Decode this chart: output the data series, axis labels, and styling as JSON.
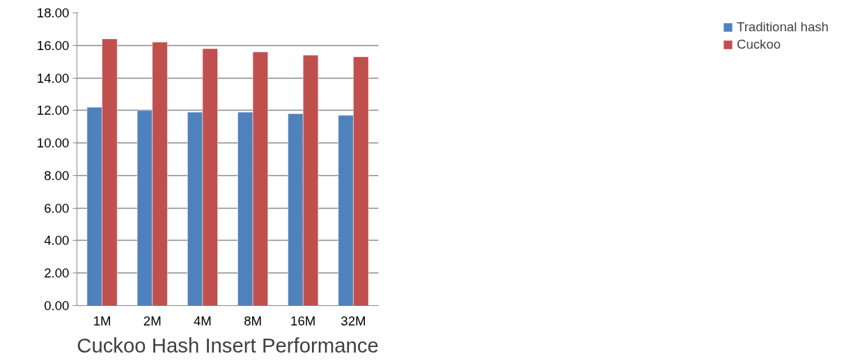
{
  "chart_data": {
    "type": "bar",
    "xlabel": "Cuckoo Hash Insert Performance",
    "categories": [
      "1M",
      "2M",
      "4M",
      "8M",
      "16M",
      "32M"
    ],
    "series": [
      {
        "name": "Traditional hash",
        "color": "#4f81bd",
        "values": [
          12.2,
          12.0,
          11.9,
          11.9,
          11.8,
          11.7
        ]
      },
      {
        "name": "Cuckoo",
        "color": "#c0504d",
        "values": [
          16.4,
          16.2,
          15.8,
          15.6,
          15.4,
          15.3
        ]
      }
    ],
    "ylim": [
      0,
      18
    ],
    "yticks": [
      {
        "value": 0,
        "label": "0.00"
      },
      {
        "value": 2,
        "label": "2.00"
      },
      {
        "value": 4,
        "label": "4.00"
      },
      {
        "value": 6,
        "label": "6.00"
      },
      {
        "value": 8,
        "label": "8.00"
      },
      {
        "value": 10,
        "label": "10.00"
      },
      {
        "value": 12,
        "label": "12.00"
      },
      {
        "value": 14,
        "label": "14.00"
      },
      {
        "value": 16,
        "label": "16.00"
      },
      {
        "value": 18,
        "label": "18.00"
      }
    ],
    "grid": "y",
    "legend": "right"
  }
}
